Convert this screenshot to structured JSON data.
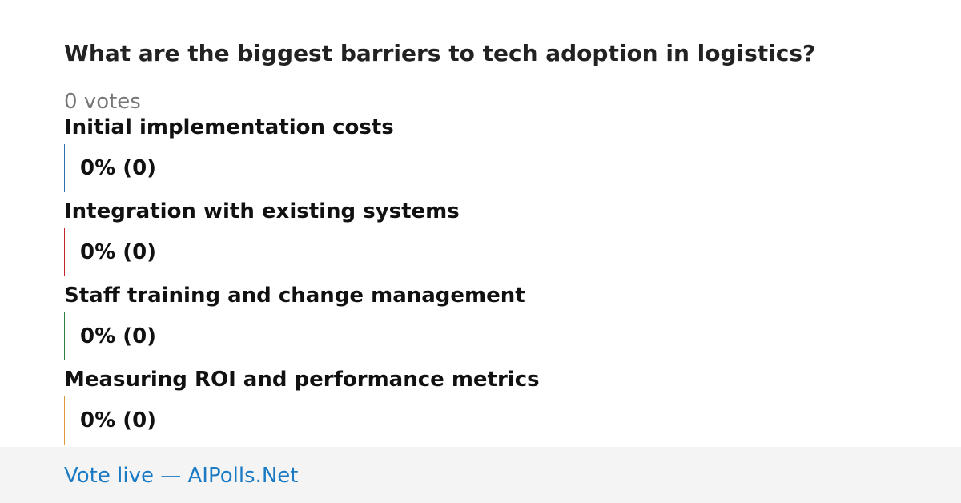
{
  "poll": {
    "title": "What are the biggest barriers to tech adoption in logistics?",
    "votes": "0 votes",
    "options": [
      {
        "label": "Initial implementation costs",
        "result": "0% (0)",
        "color": "#2c6fad"
      },
      {
        "label": "Integration with existing systems",
        "result": "0% (0)",
        "color": "#c0272d"
      },
      {
        "label": "Staff training and change management",
        "result": "0% (0)",
        "color": "#2e7d46"
      },
      {
        "label": "Measuring ROI and performance metrics",
        "result": "0% (0)",
        "color": "#e09a3c"
      }
    ],
    "footer": "Vote live — AIPolls.Net"
  }
}
